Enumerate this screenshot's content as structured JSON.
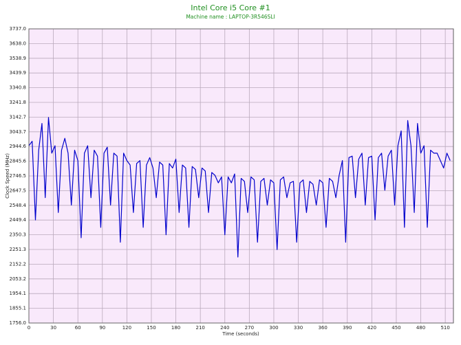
{
  "chart_data": {
    "type": "line",
    "title": "Intel Core i5 Core #1",
    "subtitle": "Machine name : LAPTOP-3R546SLI",
    "x_label": "Time (seconds)",
    "y_label": "Clock Speed (MHz)",
    "color": "#0000cc",
    "title_color": "#1f8f1f",
    "background": "#f9e9fb",
    "grid": true,
    "xlim": [
      0,
      520
    ],
    "xticks": [
      0,
      30,
      60,
      90,
      120,
      150,
      180,
      210,
      240,
      270,
      300,
      330,
      360,
      390,
      420,
      450,
      480,
      510
    ],
    "ylim": [
      1756,
      3737
    ],
    "yticks": [
      {
        "value": 1756,
        "label": "1756.0"
      },
      1855.1,
      1954.1,
      2053.2,
      2152.2,
      2251.3,
      2350.3,
      2449.4,
      2548.4,
      2647.5,
      2746.5,
      2845.6,
      2944.6,
      3043.7,
      3142.7,
      3241.8,
      3340.8,
      3439.9,
      3538.9,
      {
        "value": 3638,
        "label": "3638.0"
      },
      {
        "value": 3737,
        "label": "3737.0"
      }
    ],
    "x": [
      0,
      4,
      8,
      12,
      16,
      20,
      24,
      28,
      32,
      36,
      40,
      44,
      48,
      52,
      56,
      60,
      64,
      68,
      72,
      76,
      80,
      84,
      88,
      92,
      96,
      100,
      104,
      108,
      112,
      116,
      120,
      124,
      128,
      132,
      136,
      140,
      144,
      148,
      152,
      156,
      160,
      164,
      168,
      172,
      176,
      180,
      184,
      188,
      192,
      196,
      200,
      204,
      208,
      212,
      216,
      220,
      224,
      228,
      232,
      236,
      240,
      244,
      248,
      252,
      256,
      260,
      264,
      268,
      272,
      276,
      280,
      284,
      288,
      292,
      296,
      300,
      304,
      308,
      312,
      316,
      320,
      324,
      328,
      332,
      336,
      340,
      344,
      348,
      352,
      356,
      360,
      364,
      368,
      372,
      376,
      380,
      384,
      388,
      392,
      396,
      400,
      404,
      408,
      412,
      416,
      420,
      424,
      428,
      432,
      436,
      440,
      444,
      448,
      452,
      456,
      460,
      464,
      468,
      472,
      476,
      480,
      484,
      488,
      492,
      496,
      500,
      504,
      508,
      512,
      516
    ],
    "values": [
      2950,
      2980,
      2450,
      2920,
      3100,
      2600,
      3140,
      2900,
      2950,
      2500,
      2920,
      3000,
      2900,
      2550,
      2920,
      2850,
      2330,
      2900,
      2950,
      2600,
      2920,
      2880,
      2400,
      2900,
      2940,
      2550,
      2900,
      2880,
      2300,
      2900,
      2850,
      2820,
      2500,
      2830,
      2850,
      2400,
      2820,
      2870,
      2800,
      2600,
      2840,
      2820,
      2350,
      2830,
      2800,
      2860,
      2500,
      2820,
      2800,
      2400,
      2810,
      2790,
      2600,
      2800,
      2780,
      2500,
      2770,
      2750,
      2700,
      2740,
      2350,
      2740,
      2700,
      2760,
      2200,
      2730,
      2710,
      2500,
      2740,
      2720,
      2300,
      2710,
      2730,
      2550,
      2720,
      2700,
      2250,
      2720,
      2740,
      2600,
      2700,
      2710,
      2300,
      2700,
      2720,
      2500,
      2710,
      2690,
      2550,
      2720,
      2700,
      2400,
      2730,
      2710,
      2600,
      2750,
      2850,
      2300,
      2870,
      2880,
      2600,
      2860,
      2900,
      2550,
      2870,
      2880,
      2450,
      2870,
      2900,
      2650,
      2880,
      2920,
      2550,
      2950,
      3050,
      2400,
      3120,
      2950,
      2500,
      3100,
      2900,
      2950,
      2400,
      2920,
      2900,
      2900,
      2850,
      2800,
      2900,
      2850
    ]
  }
}
